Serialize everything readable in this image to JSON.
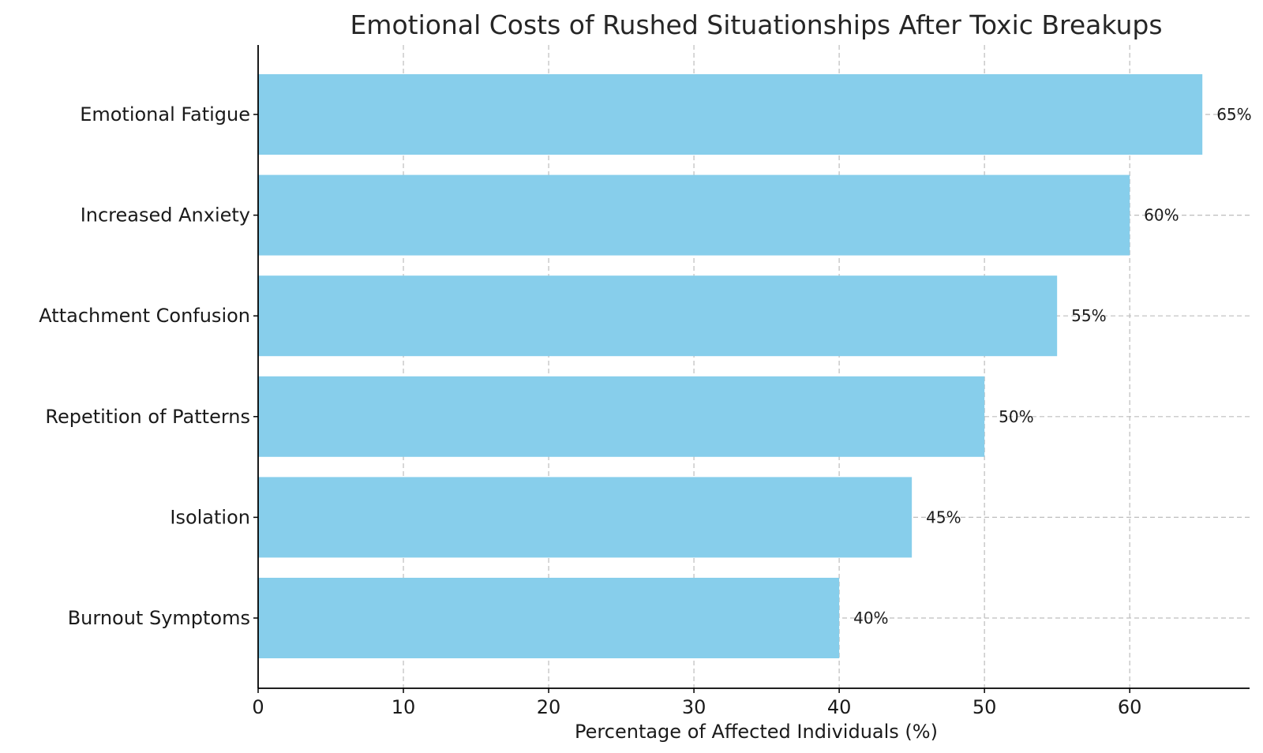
{
  "chart_data": {
    "type": "bar",
    "orientation": "horizontal",
    "title": "Emotional Costs of Rushed Situationships After Toxic Breakups",
    "xlabel": "Percentage of Affected Individuals (%)",
    "ylabel": "",
    "categories": [
      "Emotional Fatigue",
      "Increased Anxiety",
      "Attachment Confusion",
      "Repetition of Patterns",
      "Isolation",
      "Burnout Symptoms"
    ],
    "values": [
      65,
      60,
      55,
      50,
      45,
      40
    ],
    "value_labels": [
      "65%",
      "60%",
      "55%",
      "50%",
      "45%",
      "40%"
    ],
    "x_ticks": [
      0,
      10,
      20,
      30,
      40,
      50,
      60
    ],
    "xlim": [
      0,
      68.25
    ],
    "grid": true,
    "bar_color": "#87ceeb",
    "legend": "none"
  }
}
